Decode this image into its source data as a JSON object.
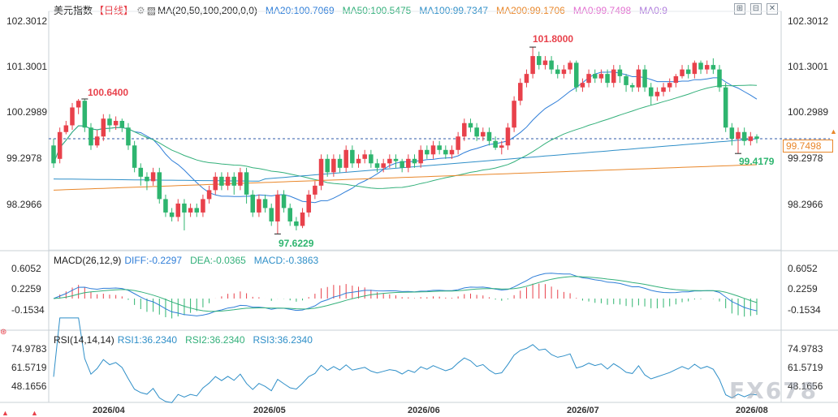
{
  "header": {
    "instrument": "美元指数",
    "period": "【日线】",
    "ma_label": "MA(20,50,100,200,0,0)",
    "ma20": "MA20:100.7069",
    "ma50": "MA50:100.5475",
    "ma100": "MA100:99.7347",
    "ma200": "MA200:99.1706",
    "ma0a": "MA0:99.7498",
    "ma0b": "MA0:9"
  },
  "toolbar": {
    "icons": [
      "grid-icon",
      "compare-icon",
      "close-icon"
    ]
  },
  "price_axis": {
    "labels": [
      "102.3012",
      "101.3001",
      "100.2989",
      "99.2978",
      "98.2966"
    ]
  },
  "price_tag": "99.7498",
  "annotations": {
    "high1": "100.6400",
    "high2": "101.8000",
    "low1": "97.6229",
    "low2": "99.4179"
  },
  "macd": {
    "title": "MACD(26,12,9)",
    "diff": "DIFF:-0.2297",
    "dea": "DEA:-0.0365",
    "macd": "MACD:-0.3863",
    "axis": [
      "0.6052",
      "0.2259",
      "-0.1534"
    ]
  },
  "rsi": {
    "title": "RSI(14,14,14)",
    "rsi1": "RSI1:36.2340",
    "rsi2": "RSI2:36.2340",
    "rsi3": "RSI3:36.2340",
    "axis": [
      "74.9783",
      "61.5719",
      "48.1656"
    ]
  },
  "x_axis": {
    "labels": [
      "2026/04",
      "2026/05",
      "2026/06",
      "2026/07",
      "2026/08"
    ]
  },
  "watermark": "FX678",
  "colors": {
    "up": "#e8414b",
    "down": "#2eb56f",
    "ma20": "#2f7ed8",
    "ma50": "#33b07a",
    "ma100": "#2f8fc8",
    "ma200": "#e9872a",
    "bg": "#ffffff"
  },
  "chart_data": {
    "type": "candlestick",
    "title": "美元指数 【日线】",
    "ylim": [
      97.3,
      102.6
    ],
    "y_ticks": [
      102.3012,
      101.3001,
      100.2989,
      99.2978,
      98.2966
    ],
    "candles": [
      [
        99.6,
        99.2,
        99.75,
        99.1
      ],
      [
        99.3,
        99.9,
        100.0,
        99.2
      ],
      [
        99.9,
        100.05,
        100.15,
        99.85
      ],
      [
        100.05,
        100.45,
        100.55,
        99.95
      ],
      [
        100.45,
        100.6,
        100.64,
        100.3
      ],
      [
        100.6,
        100.0,
        100.64,
        99.9
      ],
      [
        100.0,
        99.6,
        100.1,
        99.5
      ],
      [
        99.6,
        99.8,
        99.95,
        99.55
      ],
      [
        99.8,
        100.2,
        100.3,
        99.7
      ],
      [
        100.2,
        100.05,
        100.3,
        99.9
      ],
      [
        100.05,
        100.15,
        100.25,
        99.95
      ],
      [
        100.15,
        100.0,
        100.2,
        99.9
      ],
      [
        100.0,
        99.6,
        100.1,
        99.5
      ],
      [
        99.6,
        99.1,
        99.7,
        99.0
      ],
      [
        99.1,
        98.9,
        99.2,
        98.7
      ],
      [
        98.9,
        98.8,
        99.0,
        98.6
      ],
      [
        98.8,
        99.0,
        99.1,
        98.7
      ],
      [
        99.0,
        98.4,
        99.1,
        98.3
      ],
      [
        98.4,
        98.1,
        98.5,
        98.0
      ],
      [
        98.1,
        98.0,
        98.2,
        97.9
      ],
      [
        98.0,
        98.3,
        98.4,
        97.9
      ],
      [
        98.3,
        98.1,
        98.4,
        97.7
      ],
      [
        98.1,
        98.2,
        98.3,
        98.0
      ],
      [
        98.2,
        98.1,
        98.3,
        98.0
      ],
      [
        98.1,
        98.4,
        98.5,
        98.0
      ],
      [
        98.4,
        98.6,
        98.7,
        98.3
      ],
      [
        98.6,
        98.9,
        99.0,
        98.5
      ],
      [
        98.9,
        98.7,
        99.0,
        98.6
      ],
      [
        98.7,
        98.9,
        99.0,
        98.6
      ],
      [
        98.9,
        98.7,
        99.0,
        98.5
      ],
      [
        98.7,
        99.0,
        99.1,
        98.6
      ],
      [
        99.0,
        98.5,
        99.1,
        98.3
      ],
      [
        98.5,
        98.1,
        98.6,
        98.0
      ],
      [
        98.1,
        98.4,
        98.5,
        98.0
      ],
      [
        98.4,
        98.2,
        98.5,
        98.1
      ],
      [
        98.2,
        97.9,
        98.3,
        97.8
      ],
      [
        97.9,
        98.5,
        98.6,
        97.62
      ],
      [
        98.5,
        98.2,
        98.6,
        98.1
      ],
      [
        98.2,
        97.9,
        98.3,
        97.8
      ],
      [
        97.9,
        97.8,
        98.0,
        97.7
      ],
      [
        97.8,
        98.1,
        98.2,
        97.75
      ],
      [
        98.1,
        98.5,
        98.6,
        98.0
      ],
      [
        98.5,
        98.7,
        98.8,
        98.4
      ],
      [
        98.7,
        99.3,
        99.4,
        98.6
      ],
      [
        99.3,
        99.0,
        99.4,
        98.9
      ],
      [
        99.0,
        99.3,
        99.4,
        98.9
      ],
      [
        99.3,
        99.1,
        99.4,
        99.0
      ],
      [
        99.1,
        99.5,
        99.6,
        99.0
      ],
      [
        99.5,
        99.2,
        99.6,
        99.1
      ],
      [
        99.2,
        99.3,
        99.4,
        99.1
      ],
      [
        99.3,
        99.4,
        99.5,
        99.2
      ],
      [
        99.4,
        99.2,
        99.5,
        99.1
      ],
      [
        99.2,
        99.1,
        99.3,
        99.0
      ],
      [
        99.1,
        99.2,
        99.3,
        99.0
      ],
      [
        99.2,
        99.3,
        99.4,
        99.1
      ],
      [
        99.3,
        99.25,
        99.4,
        99.1
      ],
      [
        99.25,
        99.1,
        99.3,
        99.0
      ],
      [
        99.1,
        99.3,
        99.4,
        99.0
      ],
      [
        99.3,
        99.2,
        99.4,
        99.1
      ],
      [
        99.2,
        99.5,
        99.6,
        99.1
      ],
      [
        99.5,
        99.4,
        99.6,
        99.3
      ],
      [
        99.4,
        99.6,
        99.7,
        99.3
      ],
      [
        99.6,
        99.5,
        99.7,
        99.4
      ],
      [
        99.5,
        99.4,
        99.6,
        99.3
      ],
      [
        99.4,
        99.5,
        99.6,
        99.3
      ],
      [
        99.5,
        99.8,
        99.9,
        99.4
      ],
      [
        99.8,
        100.1,
        100.2,
        99.7
      ],
      [
        100.1,
        100.0,
        100.2,
        99.9
      ],
      [
        100.0,
        99.8,
        100.1,
        99.7
      ],
      [
        99.8,
        99.9,
        100.0,
        99.7
      ],
      [
        99.9,
        99.7,
        100.0,
        99.6
      ],
      [
        99.7,
        99.55,
        99.8,
        99.5
      ],
      [
        99.55,
        99.6,
        99.7,
        99.4
      ],
      [
        99.6,
        100.0,
        100.1,
        99.5
      ],
      [
        100.0,
        100.6,
        100.7,
        99.9
      ],
      [
        100.6,
        101.0,
        101.1,
        100.5
      ],
      [
        101.0,
        101.2,
        101.3,
        100.9
      ],
      [
        101.2,
        101.6,
        101.8,
        101.1
      ],
      [
        101.6,
        101.4,
        101.7,
        101.3
      ],
      [
        101.4,
        101.5,
        101.6,
        101.3
      ],
      [
        101.5,
        101.3,
        101.6,
        101.2
      ],
      [
        101.3,
        101.2,
        101.4,
        101.1
      ],
      [
        101.2,
        101.3,
        101.4,
        101.1
      ],
      [
        101.3,
        101.45,
        101.5,
        101.2
      ],
      [
        101.45,
        100.9,
        101.5,
        100.8
      ],
      [
        100.9,
        101.0,
        101.1,
        100.8
      ],
      [
        101.0,
        101.2,
        101.3,
        100.9
      ],
      [
        101.2,
        101.1,
        101.3,
        101.0
      ],
      [
        101.1,
        101.2,
        101.3,
        101.0
      ],
      [
        101.2,
        101.0,
        101.3,
        100.9
      ],
      [
        101.0,
        101.3,
        101.4,
        100.9
      ],
      [
        101.3,
        101.15,
        101.4,
        101.0
      ],
      [
        101.15,
        100.95,
        101.2,
        100.8
      ],
      [
        100.95,
        100.9,
        101.0,
        100.8
      ],
      [
        100.9,
        101.3,
        101.4,
        100.8
      ],
      [
        101.3,
        100.9,
        101.4,
        100.8
      ],
      [
        100.9,
        100.7,
        101.0,
        100.5
      ],
      [
        100.7,
        100.8,
        100.9,
        100.6
      ],
      [
        100.8,
        100.9,
        101.0,
        100.7
      ],
      [
        100.9,
        101.0,
        101.1,
        100.8
      ],
      [
        101.0,
        101.15,
        101.2,
        100.9
      ],
      [
        101.15,
        101.3,
        101.4,
        101.1
      ],
      [
        101.3,
        101.2,
        101.4,
        101.1
      ],
      [
        101.2,
        101.45,
        101.5,
        101.1
      ],
      [
        101.45,
        101.3,
        101.5,
        101.2
      ],
      [
        101.3,
        101.4,
        101.5,
        101.2
      ],
      [
        101.4,
        101.3,
        101.55,
        101.2
      ],
      [
        101.3,
        100.9,
        101.4,
        100.8
      ],
      [
        100.9,
        100.0,
        101.0,
        99.9
      ],
      [
        100.0,
        99.75,
        100.1,
        99.6
      ],
      [
        99.75,
        99.9,
        100.0,
        99.42
      ],
      [
        99.9,
        99.7,
        100.0,
        99.6
      ],
      [
        99.7,
        99.8,
        99.9,
        99.6
      ],
      [
        99.8,
        99.75,
        99.85,
        99.65
      ]
    ],
    "ma20_ref": [
      99.8,
      100.2,
      100.0,
      99.6,
      99.1,
      98.9,
      98.5,
      98.3,
      98.4,
      98.9,
      99.2,
      99.3,
      99.7,
      100.4,
      100.8,
      100.9,
      100.8,
      100.6,
      100.2,
      99.9
    ],
    "macd_series": {
      "diff_label": "DIFF:-0.2297",
      "dea_label": "DEA:-0.0365",
      "macd_label": "MACD:-0.3863"
    },
    "rsi_series": {
      "rsi1": 36.234
    }
  }
}
